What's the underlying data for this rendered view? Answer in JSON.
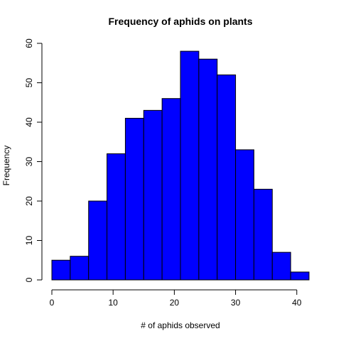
{
  "chart_data": {
    "type": "bar",
    "subtype": "histogram",
    "title": "Frequency of aphids on plants",
    "xlabel": "# of aphids observed",
    "ylabel": "Frequency",
    "bin_edges": [
      0,
      3,
      6,
      9,
      12,
      15,
      18,
      21,
      24,
      27,
      30,
      33,
      36,
      39,
      42
    ],
    "values": [
      5,
      6,
      20,
      32,
      41,
      43,
      46,
      58,
      56,
      52,
      33,
      23,
      7,
      2
    ],
    "xlim": [
      0,
      42
    ],
    "ylim": [
      0,
      60
    ],
    "x_ticks": [
      0,
      10,
      20,
      30,
      40
    ],
    "y_ticks": [
      0,
      10,
      20,
      30,
      40,
      50,
      60
    ],
    "bar_color": "#0000ff",
    "bar_edge_color": "#000000",
    "grid": false,
    "legend": "none"
  }
}
